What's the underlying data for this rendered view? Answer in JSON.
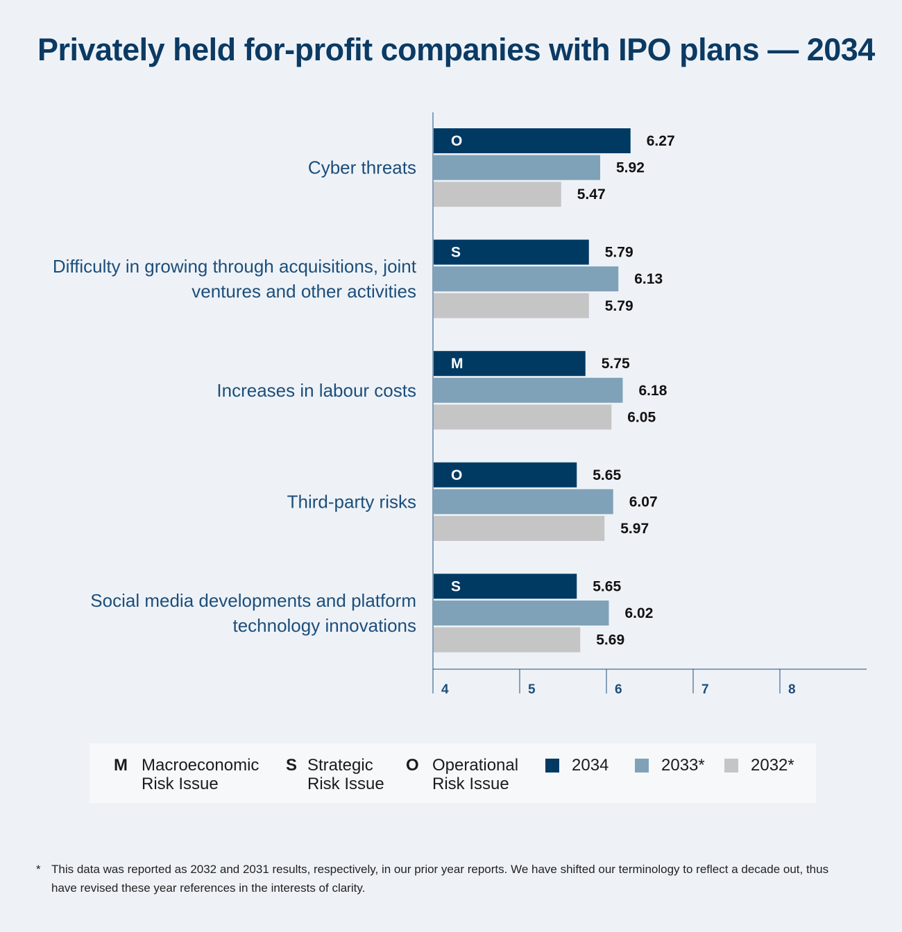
{
  "title": "Privately held for-profit companies with IPO plans — 2034",
  "chart_data": {
    "type": "bar",
    "orientation": "horizontal",
    "title": "Privately held for-profit companies with IPO plans — 2034",
    "categories": [
      "Cyber threats",
      "Difficulty in growing through acquisitions, joint ventures and other activities",
      "Increases in labour costs",
      "Third-party risks",
      "Social media developments and platform technology innovations"
    ],
    "category_lines": [
      [
        "Cyber threats"
      ],
      [
        "Difficulty in growing through acquisitions, joint",
        "ventures and other activities"
      ],
      [
        "Increases in labour costs"
      ],
      [
        "Third-party risks"
      ],
      [
        "Social media developments and platform",
        "technology innovations"
      ]
    ],
    "risk_types": [
      "O",
      "S",
      "M",
      "O",
      "S"
    ],
    "series": [
      {
        "name": "2034",
        "color": "#003a63",
        "values": [
          6.27,
          5.79,
          5.75,
          5.65,
          5.65
        ]
      },
      {
        "name": "2033*",
        "color": "#80a2b8",
        "values": [
          5.92,
          6.13,
          6.18,
          6.07,
          6.02
        ]
      },
      {
        "name": "2032*",
        "color": "#c5c5c5",
        "values": [
          5.47,
          5.79,
          6.05,
          5.97,
          5.69
        ]
      }
    ],
    "value_labels": [
      [
        "6.27",
        "5.79",
        "5.75",
        "5.65",
        "5.65"
      ],
      [
        "5.92",
        "6.13",
        "6.18",
        "6.07",
        "6.02"
      ],
      [
        "5.47",
        "5.79",
        "6.05",
        "5.97",
        "5.69"
      ]
    ],
    "xlim": [
      4,
      9
    ],
    "ticks": [
      "4",
      "5",
      "6",
      "7",
      "8"
    ],
    "tick_values": [
      4,
      5,
      6,
      7,
      8
    ],
    "xlabel": "",
    "ylabel": "",
    "grid": false,
    "legend_position": "bottom"
  },
  "legend": {
    "risk_types": [
      {
        "letter": "M",
        "text": "Macroeconomic\nRisk Issue"
      },
      {
        "letter": "S",
        "text": "Strategic\nRisk Issue"
      },
      {
        "letter": "O",
        "text": "Operational\nRisk Issue"
      }
    ],
    "years": [
      {
        "label": "2034",
        "color": "#003a63"
      },
      {
        "label": "2033*",
        "color": "#80a2b8"
      },
      {
        "label": "2032*",
        "color": "#c5c5c5"
      }
    ]
  },
  "footnote": {
    "marker": "*",
    "text": "This data was reported as 2032 and 2031 results, respectively, in our prior year reports. We have shifted our terminology to reflect a decade out, thus have revised these year references in the interests of clarity."
  }
}
